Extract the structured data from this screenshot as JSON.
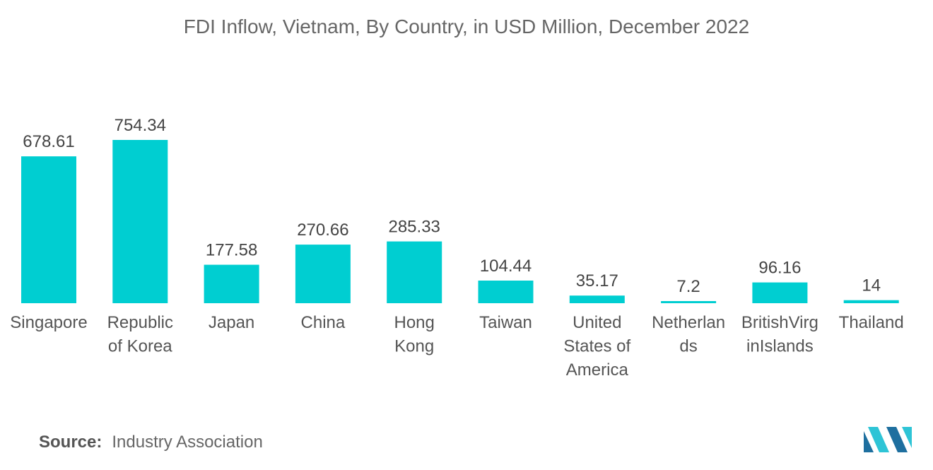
{
  "chart_data": {
    "type": "bar",
    "title": "FDI Inflow, Vietnam, By Country, in USD Million, December 2022",
    "categories": [
      [
        "Singapore"
      ],
      [
        "Republic",
        "of Korea"
      ],
      [
        "Japan"
      ],
      [
        "China"
      ],
      [
        "Hong",
        "Kong"
      ],
      [
        "Taiwan"
      ],
      [
        "United",
        "States of",
        "America"
      ],
      [
        "Netherlan",
        "ds"
      ],
      [
        "BritishVirg",
        "inIslands"
      ],
      [
        "Thailand"
      ]
    ],
    "values": [
      678.61,
      754.34,
      177.58,
      270.66,
      285.33,
      104.44,
      35.17,
      7.2,
      96.16,
      14
    ],
    "value_labels": [
      "678.61",
      "754.34",
      "177.58",
      "270.66",
      "285.33",
      "104.44",
      "35.17",
      "7.2",
      "96.16",
      "14"
    ],
    "xlabel": "",
    "ylabel": "",
    "ylim": [
      0,
      754.34
    ],
    "grid": false,
    "legend": "none",
    "bar_color": "#00CED1"
  },
  "source": {
    "key": "Source:",
    "value": "Industry Association"
  },
  "logo": {
    "icon": "mordor-intelligence-logo-icon",
    "colors": [
      "#1e6f9f",
      "#2ec4d6"
    ]
  }
}
